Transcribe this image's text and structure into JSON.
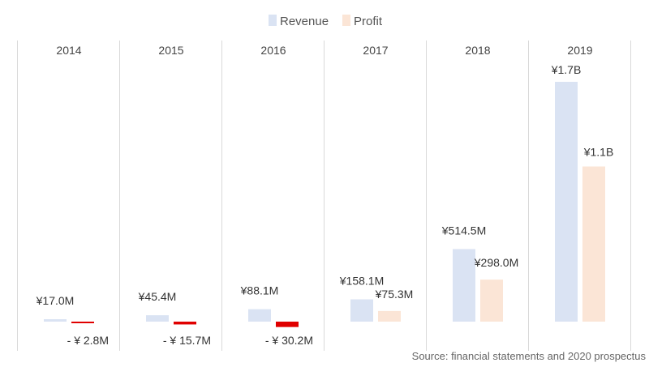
{
  "chart_data": {
    "type": "bar",
    "categories": [
      "2014",
      "2015",
      "2016",
      "2017",
      "2018",
      "2019"
    ],
    "series": [
      {
        "name": "Revenue",
        "values": [
          17.0,
          45.4,
          88.1,
          158.1,
          514.5,
          1700
        ],
        "labels": [
          "¥17.0M",
          "¥45.4M",
          "¥88.1M",
          "¥158.1M",
          "¥514.5M",
          "¥1.7B"
        ],
        "color": "#dae3f3"
      },
      {
        "name": "Profit",
        "values": [
          -2.8,
          -15.7,
          -30.2,
          75.3,
          298.0,
          1100
        ],
        "labels": [
          "- ¥ 2.8M",
          "- ¥ 15.7M",
          "- ¥ 30.2M",
          "¥75.3M",
          "¥298.0M",
          "¥1.1B"
        ],
        "color": "#fbe5d6",
        "negative_color": "#e00000"
      }
    ],
    "units": "¥ millions",
    "legend_position": "top-center",
    "grid": false,
    "source": "Source: financial statements and 2020 prospectus"
  }
}
